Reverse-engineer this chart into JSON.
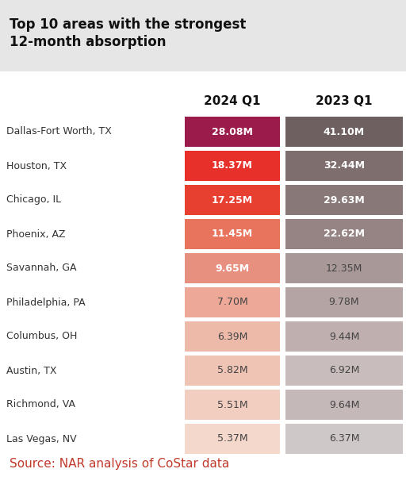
{
  "title_line1": "Top 10 areas with the strongest",
  "title_line2": "12-month absorption",
  "source": "Source: NAR analysis of CoStar data",
  "header_2024": "2024 Q1",
  "header_2023": "2023 Q1",
  "areas": [
    "Dallas-Fort Worth, TX",
    "Houston, TX",
    "Chicago, IL",
    "Phoenix, AZ",
    "Savannah, GA",
    "Philadelphia, PA",
    "Columbus, OH",
    "Austin, TX",
    "Richmond, VA",
    "Las Vegas, NV"
  ],
  "values_2024": [
    "28.08M",
    "18.37M",
    "17.25M",
    "11.45M",
    "9.65M",
    "7.70M",
    "6.39M",
    "5.82M",
    "5.51M",
    "5.37M"
  ],
  "values_2023": [
    "41.10M",
    "32.44M",
    "29.63M",
    "22.62M",
    "12.35M",
    "9.78M",
    "9.44M",
    "6.92M",
    "9.64M",
    "6.37M"
  ],
  "colors_2024": [
    "#9b1b4a",
    "#e8302a",
    "#e84030",
    "#e8745e",
    "#e89080",
    "#eda898",
    "#edbaaa",
    "#f0c4b4",
    "#f2cec0",
    "#f5d8cc"
  ],
  "colors_2023": [
    "#6e6060",
    "#7e6e6e",
    "#887878",
    "#968484",
    "#a89898",
    "#b4a4a4",
    "#bfafaf",
    "#c8bcbc",
    "#c4b8b8",
    "#cfc8c8"
  ],
  "title_bg": "#e6e6e6",
  "title_color": "#111111",
  "header_color": "#111111",
  "area_color": "#333333",
  "value_color_white": "#ffffff",
  "value_color_dark": "#444444",
  "source_color": "#c0392b",
  "bg_color": "#ffffff",
  "white_text_threshold_2024": 4,
  "white_text_threshold_2023": 3
}
